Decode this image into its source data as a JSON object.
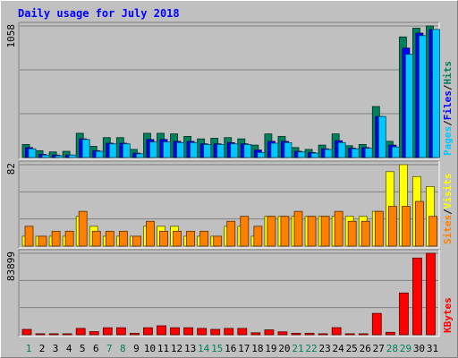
{
  "chart_data": {
    "type": "bar",
    "title": "Daily usage for July 2018",
    "categories": [
      "1",
      "2",
      "3",
      "4",
      "5",
      "6",
      "7",
      "8",
      "9",
      "10",
      "11",
      "12",
      "13",
      "14",
      "15",
      "16",
      "17",
      "18",
      "19",
      "20",
      "21",
      "22",
      "23",
      "24",
      "25",
      "26",
      "27",
      "28",
      "29",
      "30",
      "31"
    ],
    "weekend_days": [
      "1",
      "7",
      "8",
      "14",
      "15",
      "21",
      "22",
      "28",
      "29"
    ],
    "panels": [
      {
        "id": "top",
        "max_label": "1058",
        "ylim": [
          0,
          1058
        ],
        "labels": [
          "Pages",
          "/",
          "Files",
          "/",
          "Hits"
        ],
        "series": [
          {
            "name": "Hits",
            "color": "#00805c",
            "values": [
              105,
              55,
              45,
              50,
              195,
              90,
              160,
              160,
              65,
              195,
              195,
              190,
              170,
              150,
              155,
              160,
              150,
              100,
              190,
              170,
              80,
              65,
              100,
              190,
              95,
              105,
              410,
              130,
              970,
              1040,
              1058
            ]
          },
          {
            "name": "Files",
            "color": "#0000ff",
            "values": [
              80,
              25,
              20,
              20,
              150,
              55,
              115,
              115,
              35,
              145,
              145,
              130,
              130,
              110,
              110,
              120,
              110,
              60,
              130,
              130,
              50,
              40,
              70,
              135,
              75,
              80,
              330,
              100,
              880,
              1000,
              1030
            ]
          },
          {
            "name": "Pages",
            "color": "#00c8ff",
            "values": [
              70,
              20,
              15,
              20,
              145,
              50,
              110,
              110,
              30,
              125,
              125,
              120,
              120,
              105,
              105,
              110,
              105,
              40,
              115,
              120,
              45,
              35,
              65,
              120,
              70,
              75,
              330,
              85,
              830,
              980,
              1030
            ]
          }
        ]
      },
      {
        "id": "middle",
        "max_label": "82",
        "ylim": [
          0,
          82
        ],
        "labels": [
          "Sites",
          "/",
          "Visits"
        ],
        "series": [
          {
            "name": "Visits",
            "color": "#ffff00",
            "values": [
              10,
              10,
              10,
              10,
              30,
              20,
              10,
              10,
              10,
              20,
              20,
              20,
              10,
              10,
              10,
              20,
              20,
              10,
              30,
              30,
              30,
              30,
              30,
              30,
              30,
              30,
              35,
              75,
              82,
              70,
              60
            ]
          },
          {
            "name": "Sites",
            "color": "#ff8000",
            "values": [
              20,
              10,
              15,
              15,
              35,
              15,
              15,
              15,
              10,
              25,
              15,
              15,
              15,
              15,
              10,
              25,
              30,
              20,
              30,
              30,
              35,
              30,
              30,
              35,
              25,
              25,
              35,
              40,
              40,
              45,
              30
            ]
          }
        ]
      },
      {
        "id": "bottom",
        "max_label": "83899",
        "ylim": [
          0,
          83899
        ],
        "labels": [
          "KBytes"
        ],
        "series": [
          {
            "name": "KBytes",
            "color": "#ff0000",
            "values": [
              5500,
              1000,
              1000,
              1000,
              6500,
              3200,
              7200,
              7200,
              1500,
              7200,
              9200,
              7200,
              7200,
              6500,
              5500,
              6500,
              6500,
              2000,
              5000,
              3000,
              1500,
              1500,
              1000,
              7300,
              1000,
              1000,
              22000,
              2500,
              43000,
              79000,
              83899
            ]
          }
        ]
      }
    ]
  }
}
